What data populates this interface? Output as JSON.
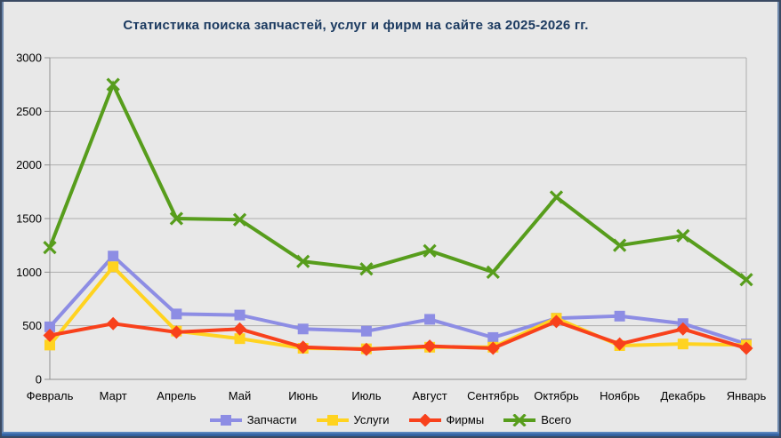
{
  "window": {
    "title": "Статистика поиска запчастей, услуг и фирм на сайте за 2025-2026 гг."
  },
  "colors": {
    "background": "#e8e8e8",
    "border": "#3a4a63",
    "edge_accent": "#6d87aa",
    "bottom_bar": "#2f5f9f",
    "gridline": "#aeaeae",
    "axis": "#8f8f8f",
    "title_text": "#1b3a60",
    "label_text": "#000000"
  },
  "chart_data": {
    "type": "line",
    "title": "Статистика поиска запчастей, услуг и фирм на сайте за 2025-2026 гг.",
    "categories": [
      "Февраль",
      "Март",
      "Апрель",
      "Май",
      "Июнь",
      "Июль",
      "Август",
      "Сентябрь",
      "Октябрь",
      "Ноябрь",
      "Декабрь",
      "Январь"
    ],
    "series": [
      {
        "name": "Запчасти",
        "key": "zapchasti",
        "color": "#8d8de4",
        "marker": "square",
        "values": [
          490,
          1150,
          610,
          600,
          470,
          450,
          560,
          390,
          570,
          590,
          520,
          330
        ]
      },
      {
        "name": "Услуги",
        "key": "uslugi",
        "color": "#ffd320",
        "marker": "square",
        "values": [
          320,
          1050,
          450,
          380,
          290,
          285,
          300,
          300,
          570,
          315,
          330,
          320
        ]
      },
      {
        "name": "Фирмы",
        "key": "firmy",
        "color": "#f8411c",
        "marker": "diamond",
        "values": [
          410,
          520,
          440,
          470,
          300,
          280,
          310,
          290,
          540,
          330,
          470,
          290
        ]
      },
      {
        "name": "Всего",
        "key": "vsego",
        "color": "#579d1c",
        "marker": "x",
        "values": [
          1230,
          2750,
          1500,
          1490,
          1100,
          1030,
          1200,
          1000,
          1700,
          1250,
          1340,
          930
        ]
      }
    ],
    "ylim": [
      0,
      3000
    ],
    "ytick_step": 500,
    "ytick_labels": [
      "0",
      "500",
      "1000",
      "1500",
      "2000",
      "2500",
      "3000"
    ],
    "grid": "horizontal",
    "legend_position": "bottom"
  }
}
